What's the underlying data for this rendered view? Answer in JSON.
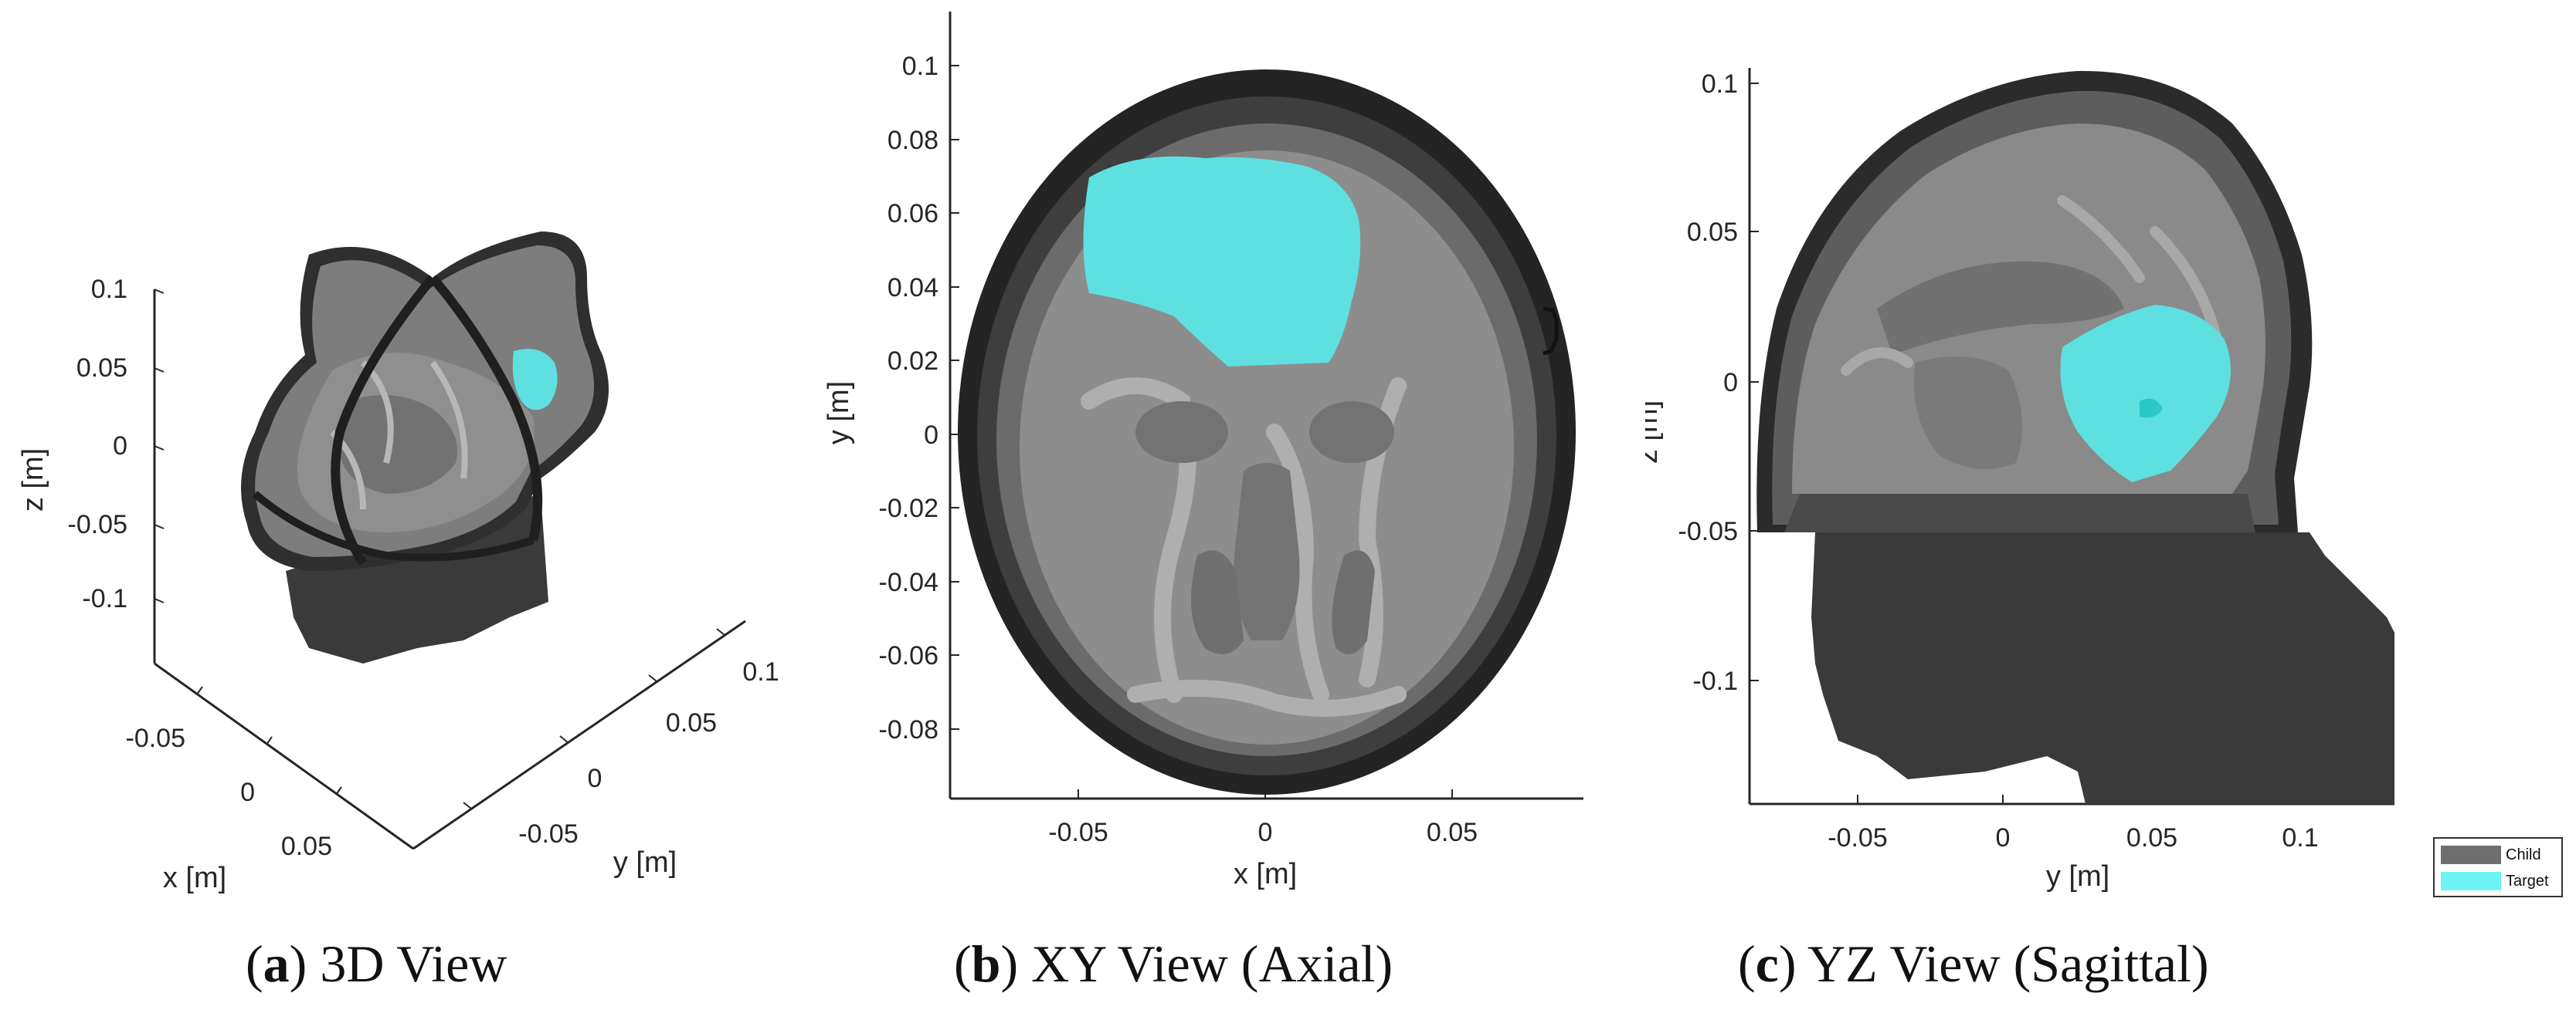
{
  "panels": {
    "a": {
      "caption_letter": "a",
      "caption_text": "3D View",
      "z_ticks": [
        "0.1",
        "0.05",
        "0",
        "-0.05",
        "-0.1"
      ],
      "x_ticks": [
        "-0.05",
        "0",
        "0.05"
      ],
      "y_ticks": [
        "-0.05",
        "0",
        "0.05",
        "0.1"
      ],
      "z_label": "z [m]",
      "x_label": "x [m]",
      "y_label": "y [m]"
    },
    "b": {
      "caption_letter": "b",
      "caption_text": "XY View (Axial)",
      "y_ticks": [
        "0.1",
        "0.08",
        "0.06",
        "0.04",
        "0.02",
        "0",
        "-0.02",
        "-0.04",
        "-0.06",
        "-0.08"
      ],
      "x_ticks": [
        "-0.05",
        "0",
        "0.05"
      ],
      "x_label": "x [m]",
      "y_label": "y [m]"
    },
    "c": {
      "caption_letter": "c",
      "caption_text": "YZ View (Sagittal)",
      "z_ticks": [
        "0.1",
        "0.05",
        "0",
        "-0.05",
        "-0.1"
      ],
      "y_ticks": [
        "-0.05",
        "0",
        "0.05",
        "0.1"
      ],
      "y_label": "y [m]",
      "z_label": "z [m]"
    }
  },
  "legend": {
    "items": [
      {
        "label": "Child",
        "color": "#6e6e6e"
      },
      {
        "label": "Target",
        "color": "#6ef4f4"
      }
    ]
  },
  "colors": {
    "target": "#5ee0e0",
    "skin": "#2b2b2b",
    "skull": "#3f3f3f",
    "csf": "#6a6a6a",
    "brain_gray": "#8c8c8c",
    "white_matter": "#b0b0b0",
    "ventricle": "#6f6f6f"
  }
}
